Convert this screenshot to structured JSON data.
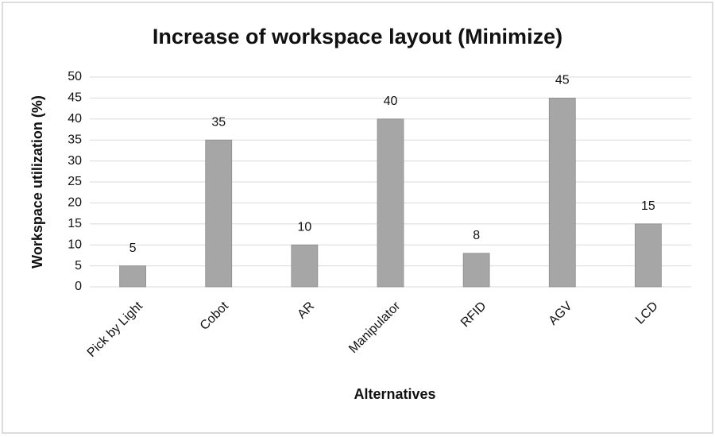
{
  "chart_data": {
    "type": "bar",
    "title": "Increase of workspace layout (Minimize)",
    "x_label": "Alternatives",
    "y_label": "Workspace utilization (%)",
    "categories": [
      "Pick by Light",
      "Cobot",
      "AR",
      "Manipulator",
      "RFID",
      "AGV",
      "LCD"
    ],
    "values": [
      5,
      35,
      10,
      40,
      8,
      45,
      15
    ],
    "color": "#a6a6a6",
    "ylim": [
      0,
      50
    ],
    "yticks": [
      0,
      5,
      10,
      15,
      20,
      25,
      30,
      35,
      40,
      45,
      50
    ],
    "grid": true
  }
}
